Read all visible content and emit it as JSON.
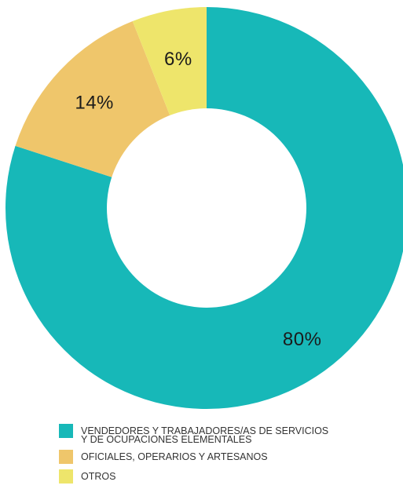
{
  "chart_data": {
    "type": "pie",
    "categories": [
      "VENDEDORES Y TRABAJADORES/AS DE SERVICIOS\nY DE OCUPACIONES ELEMENTALES",
      "OFICIALES, OPERARIOS Y ARTESANOS",
      "OTROS"
    ],
    "values": [
      80,
      14,
      6
    ],
    "value_labels": [
      "80%",
      "14%",
      "6%"
    ],
    "colors": [
      "#17b8b8",
      "#efc66b",
      "#eee56b"
    ],
    "donut": true,
    "legend_position": "bottom"
  }
}
